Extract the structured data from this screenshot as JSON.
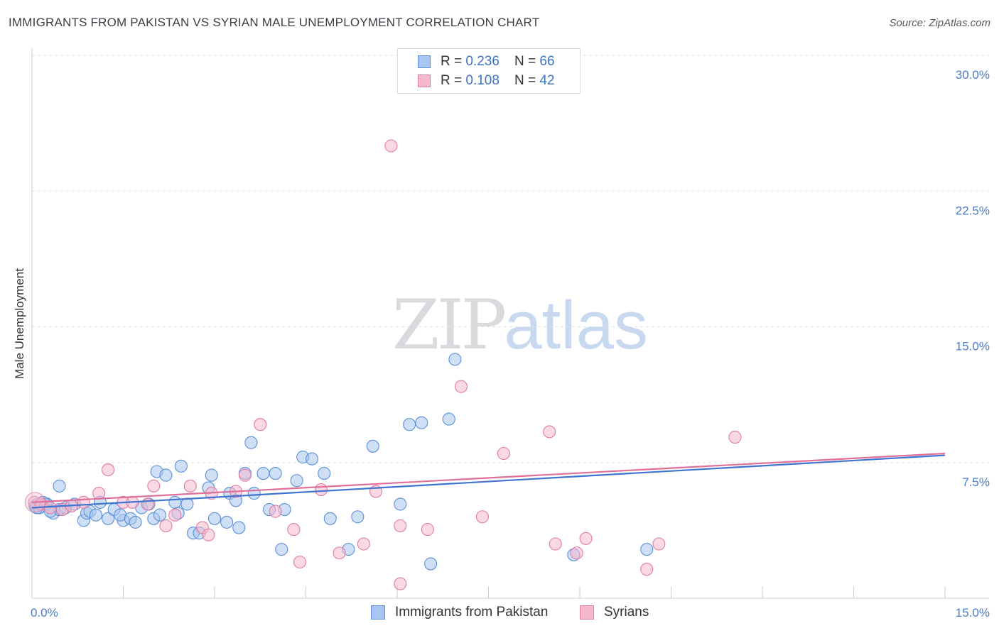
{
  "title": "IMMIGRANTS FROM PAKISTAN VS SYRIAN MALE UNEMPLOYMENT CORRELATION CHART",
  "source": "Source: ZipAtlas.com",
  "watermark": {
    "zip": "ZIP",
    "atlas": "atlas"
  },
  "colors": {
    "blue": "#5b8fd9",
    "blue_fill": "#a8c6ef",
    "pink": "#e07ba0",
    "pink_fill": "#f5b8cd",
    "tick": "#4a7cc9",
    "grid": "#e2e2e2"
  },
  "legend_top": {
    "rows": [
      {
        "r_label": "R = ",
        "r_value": "0.236",
        "n_label": "N = ",
        "n_value": "66"
      },
      {
        "r_label": "R = ",
        "r_value": "0.108",
        "n_label": "N = ",
        "n_value": "42"
      }
    ]
  },
  "chart_data": {
    "type": "scatter",
    "title": "IMMIGRANTS FROM PAKISTAN VS SYRIAN MALE UNEMPLOYMENT CORRELATION CHART",
    "xlabel": "",
    "ylabel": "Male Unemployment",
    "xlim": [
      0,
      15
    ],
    "ylim": [
      0,
      30
    ],
    "y_ticks": [
      {
        "value": 7.5,
        "label": "7.5%"
      },
      {
        "value": 15,
        "label": "15.0%"
      },
      {
        "value": 22.5,
        "label": "22.5%"
      },
      {
        "value": 30,
        "label": "30.0%"
      }
    ],
    "x_ticks": [
      {
        "value": 0,
        "label": "0.0%"
      },
      {
        "value": 15,
        "label": "15.0%"
      }
    ],
    "grid": "horizontal dashed",
    "legend_placement": "bottom-center",
    "series": [
      {
        "name": "Immigrants from Pakistan",
        "color": "#5b8fd9",
        "trend": [
          [
            0,
            5.0
          ],
          [
            15,
            7.9
          ]
        ],
        "points": [
          [
            0.05,
            5.1
          ],
          [
            0.12,
            5.0
          ],
          [
            0.18,
            5.3
          ],
          [
            0.25,
            5.2
          ],
          [
            0.35,
            4.7
          ],
          [
            0.45,
            4.9
          ],
          [
            0.55,
            5.0
          ],
          [
            0.45,
            6.2
          ],
          [
            0.7,
            5.2
          ],
          [
            0.85,
            4.3
          ],
          [
            0.9,
            4.7
          ],
          [
            0.95,
            4.8
          ],
          [
            1.05,
            4.6
          ],
          [
            1.12,
            5.3
          ],
          [
            1.25,
            4.4
          ],
          [
            1.35,
            4.9
          ],
          [
            1.5,
            4.3
          ],
          [
            1.45,
            4.6
          ],
          [
            1.62,
            4.4
          ],
          [
            1.7,
            4.2
          ],
          [
            1.8,
            5.0
          ],
          [
            1.92,
            5.2
          ],
          [
            2.0,
            4.4
          ],
          [
            2.1,
            4.6
          ],
          [
            2.05,
            7.0
          ],
          [
            2.2,
            6.8
          ],
          [
            2.35,
            5.3
          ],
          [
            2.4,
            4.7
          ],
          [
            2.45,
            7.3
          ],
          [
            2.55,
            5.2
          ],
          [
            2.65,
            3.6
          ],
          [
            2.75,
            3.6
          ],
          [
            2.9,
            6.1
          ],
          [
            2.95,
            6.8
          ],
          [
            3.0,
            4.4
          ],
          [
            3.2,
            4.2
          ],
          [
            3.25,
            5.8
          ],
          [
            3.4,
            3.9
          ],
          [
            3.35,
            5.4
          ],
          [
            3.5,
            6.9
          ],
          [
            3.6,
            8.6
          ],
          [
            3.65,
            5.8
          ],
          [
            3.8,
            6.9
          ],
          [
            3.9,
            4.9
          ],
          [
            4.0,
            6.9
          ],
          [
            4.15,
            4.9
          ],
          [
            4.1,
            2.7
          ],
          [
            4.35,
            6.5
          ],
          [
            4.45,
            7.8
          ],
          [
            4.6,
            7.7
          ],
          [
            4.8,
            6.9
          ],
          [
            4.9,
            4.4
          ],
          [
            5.2,
            2.7
          ],
          [
            5.35,
            4.5
          ],
          [
            5.6,
            8.4
          ],
          [
            6.05,
            5.2
          ],
          [
            6.2,
            9.6
          ],
          [
            6.4,
            9.7
          ],
          [
            6.55,
            1.9
          ],
          [
            6.85,
            9.9
          ],
          [
            6.95,
            13.2
          ],
          [
            8.9,
            2.4
          ],
          [
            10.1,
            2.7
          ],
          [
            0.08,
            5.0
          ],
          [
            0.22,
            5.2
          ],
          [
            0.3,
            4.8
          ]
        ]
      },
      {
        "name": "Syrians",
        "color": "#e07ba0",
        "trend": [
          [
            0,
            5.3
          ],
          [
            15,
            8.0
          ]
        ],
        "points": [
          [
            0.04,
            5.3
          ],
          [
            0.15,
            5.2
          ],
          [
            0.3,
            5.0
          ],
          [
            0.5,
            4.9
          ],
          [
            0.65,
            5.1
          ],
          [
            0.85,
            5.3
          ],
          [
            1.1,
            5.8
          ],
          [
            1.25,
            7.1
          ],
          [
            1.5,
            5.3
          ],
          [
            1.65,
            5.3
          ],
          [
            1.9,
            5.2
          ],
          [
            2.0,
            6.2
          ],
          [
            2.2,
            4.0
          ],
          [
            2.35,
            4.6
          ],
          [
            2.6,
            6.2
          ],
          [
            2.8,
            3.9
          ],
          [
            2.9,
            3.5
          ],
          [
            2.95,
            5.8
          ],
          [
            3.35,
            5.9
          ],
          [
            3.5,
            6.8
          ],
          [
            3.75,
            9.6
          ],
          [
            4.0,
            4.8
          ],
          [
            4.3,
            3.8
          ],
          [
            4.4,
            2.0
          ],
          [
            4.75,
            6.0
          ],
          [
            5.05,
            2.5
          ],
          [
            5.45,
            3.0
          ],
          [
            5.65,
            5.9
          ],
          [
            5.9,
            25.0
          ],
          [
            6.05,
            4.0
          ],
          [
            6.05,
            0.8
          ],
          [
            6.5,
            3.8
          ],
          [
            7.05,
            11.7
          ],
          [
            7.4,
            4.5
          ],
          [
            7.75,
            8.0
          ],
          [
            8.5,
            9.2
          ],
          [
            8.6,
            3.0
          ],
          [
            8.95,
            2.5
          ],
          [
            9.1,
            3.3
          ],
          [
            10.1,
            1.6
          ],
          [
            10.3,
            3.0
          ],
          [
            11.55,
            8.9
          ]
        ]
      }
    ]
  }
}
